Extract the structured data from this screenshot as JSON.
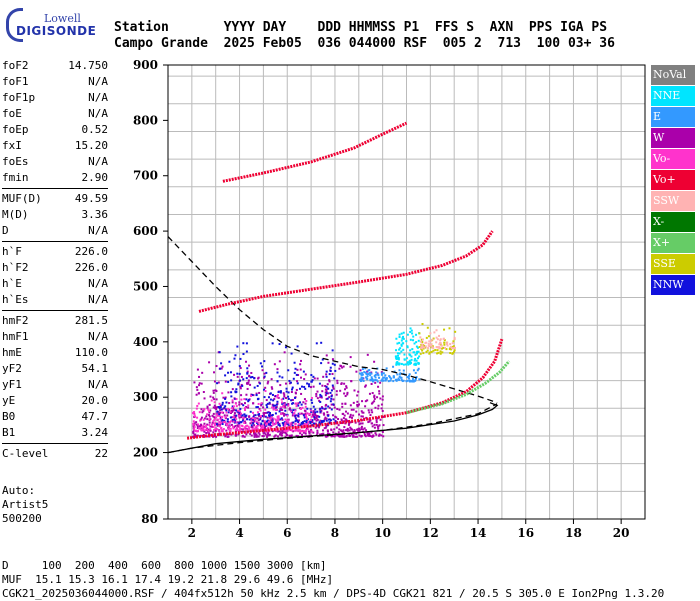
{
  "logo": {
    "line1": "Lowell",
    "line2": "DIGISONDE"
  },
  "header": {
    "line1": "Station       YYYY DAY    DDD HHMMSS P1  FFS S  AXN  PPS IGA PS",
    "line2": "Campo Grande  2025 Feb05  036 044000 RSF  005 2  713  100 03+ 36"
  },
  "params": {
    "group1": [
      {
        "label": "foF2",
        "value": "14.750"
      },
      {
        "label": "foF1",
        "value": "N/A"
      },
      {
        "label": "foF1p",
        "value": "N/A"
      },
      {
        "label": "foE",
        "value": "N/A"
      },
      {
        "label": "foEp",
        "value": "0.52"
      },
      {
        "label": "fxI",
        "value": "15.20"
      },
      {
        "label": "foEs",
        "value": "N/A"
      },
      {
        "label": "fmin",
        "value": "2.90"
      }
    ],
    "group2": [
      {
        "label": "MUF(D)",
        "value": "49.59"
      },
      {
        "label": "M(D)",
        "value": "3.36"
      },
      {
        "label": "D",
        "value": "N/A"
      }
    ],
    "group3": [
      {
        "label": "h`F",
        "value": "226.0"
      },
      {
        "label": "h`F2",
        "value": "226.0"
      },
      {
        "label": "h`E",
        "value": "N/A"
      },
      {
        "label": "h`Es",
        "value": "N/A"
      }
    ],
    "group4": [
      {
        "label": "hmF2",
        "value": "281.5"
      },
      {
        "label": "hmF1",
        "value": "N/A"
      },
      {
        "label": "hmE",
        "value": "110.0"
      },
      {
        "label": "yF2",
        "value": "54.1"
      },
      {
        "label": "yF1",
        "value": "N/A"
      },
      {
        "label": "yE",
        "value": "20.0"
      },
      {
        "label": "B0",
        "value": "47.7"
      },
      {
        "label": "B1",
        "value": "3.24"
      }
    ],
    "group5": [
      {
        "label": "C-level",
        "value": "22"
      }
    ]
  },
  "auto": {
    "line1": "Auto:",
    "line2": "Artist5",
    "line3": "500200"
  },
  "legend": [
    {
      "label": "NoVal",
      "color": "#808080"
    },
    {
      "label": "NNE",
      "color": "#00e5ff"
    },
    {
      "label": "E",
      "color": "#3399ff"
    },
    {
      "label": "W",
      "color": "#aa00aa"
    },
    {
      "label": "Vo-",
      "color": "#ff33cc"
    },
    {
      "label": "Vo+",
      "color": "#ee0033"
    },
    {
      "label": "SSW",
      "color": "#ffb3b3"
    },
    {
      "label": "X-",
      "color": "#007700"
    },
    {
      "label": "X+",
      "color": "#66cc66"
    },
    {
      "label": "SSE",
      "color": "#cccc00"
    },
    {
      "label": "NNW",
      "color": "#1111dd"
    }
  ],
  "footer": {
    "line1": "D     100  200  400  600  800 1000 1500 3000 [km]",
    "line2": "MUF  15.1 15.3 16.1 17.4 19.2 21.8 29.6 49.6 [MHz]",
    "line3": "CGK21_2025036044000.RSF / 404fx512h 50 kHz 2.5 km / DPS-4D CGK21 821 / 20.5 S 305.0 E Ion2Png 1.3.20"
  },
  "chart_data": {
    "type": "scatter",
    "xlim": [
      1,
      21
    ],
    "ylim": [
      80,
      900
    ],
    "xticks": [
      2,
      4,
      6,
      8,
      10,
      12,
      14,
      16,
      18,
      20
    ],
    "yticks": [
      80,
      200,
      300,
      400,
      500,
      600,
      700,
      800,
      900
    ],
    "grid": true,
    "legend_position": "right",
    "traces": [
      {
        "name": "Vo+",
        "color": "#ee0033",
        "x": [
          1.8,
          3,
          5,
          7,
          9,
          11,
          12.5,
          13.5,
          14.2,
          14.7,
          15.0
        ],
        "y": [
          226,
          232,
          240,
          248,
          258,
          272,
          290,
          310,
          335,
          365,
          405
        ]
      },
      {
        "name": "X+",
        "color": "#66cc66",
        "x": [
          11,
          12.5,
          13.5,
          14.3,
          14.9,
          15.3
        ],
        "y": [
          272,
          288,
          305,
          325,
          345,
          365
        ]
      },
      {
        "name": "Vo+",
        "color": "#ee0033",
        "x": [
          2.3,
          3.5,
          5,
          7,
          9,
          11,
          12.5,
          13.5,
          14.2,
          14.6
        ],
        "y": [
          455,
          468,
          482,
          495,
          508,
          522,
          538,
          555,
          575,
          600
        ]
      },
      {
        "name": "Vo+",
        "color": "#ee0033",
        "x": [
          3.3,
          5,
          7,
          8.8,
          10,
          11
        ],
        "y": [
          690,
          705,
          725,
          750,
          775,
          795
        ]
      }
    ],
    "model_curves": [
      {
        "style": "solid",
        "x": [
          1,
          3,
          5,
          7,
          9,
          11,
          13,
          14,
          14.6,
          14.8,
          14.5
        ],
        "y": [
          200,
          216,
          224,
          230,
          236,
          244,
          257,
          268,
          278,
          285,
          290
        ]
      },
      {
        "style": "dashed",
        "x": [
          1,
          2,
          3,
          4,
          5,
          6,
          7,
          8,
          9,
          10,
          11,
          12,
          13,
          14,
          14.8
        ],
        "y": [
          590,
          545,
          500,
          458,
          422,
          392,
          375,
          365,
          355,
          350,
          340,
          328,
          315,
          302,
          290
        ]
      },
      {
        "style": "dashed",
        "x": [
          1,
          2,
          4,
          6,
          8,
          10,
          12,
          14,
          14.8
        ],
        "y": [
          200,
          208,
          218,
          226,
          232,
          240,
          252,
          270,
          288
        ]
      }
    ],
    "scatter_clouds": [
      {
        "name": "W",
        "color": "#aa00aa",
        "xrange": [
          2,
          10
        ],
        "yrange": [
          230,
          390
        ],
        "n": 900
      },
      {
        "name": "NNW",
        "color": "#1111dd",
        "xrange": [
          3,
          8
        ],
        "yrange": [
          250,
          420
        ],
        "n": 350
      },
      {
        "name": "Vo-",
        "color": "#ff33cc",
        "xrange": [
          2,
          7
        ],
        "yrange": [
          240,
          320
        ],
        "n": 300
      },
      {
        "name": "E",
        "color": "#3399ff",
        "xrange": [
          9,
          11.5
        ],
        "yrange": [
          330,
          360
        ],
        "n": 120
      },
      {
        "name": "NNE",
        "color": "#00e5ff",
        "xrange": [
          10.5,
          11.5
        ],
        "yrange": [
          360,
          450
        ],
        "n": 100
      },
      {
        "name": "SSE",
        "color": "#cccc00",
        "xrange": [
          11.5,
          13
        ],
        "yrange": [
          380,
          440
        ],
        "n": 60
      },
      {
        "name": "SSW",
        "color": "#ffb3b3",
        "xrange": [
          11.5,
          13
        ],
        "yrange": [
          390,
          430
        ],
        "n": 60
      }
    ]
  }
}
